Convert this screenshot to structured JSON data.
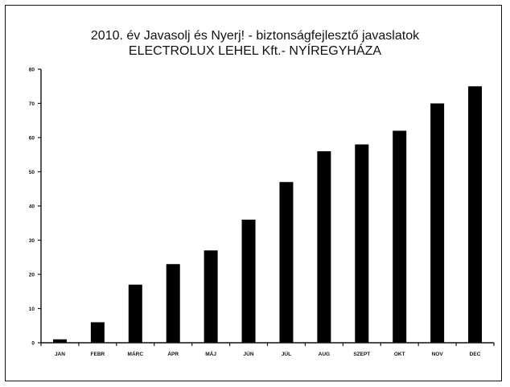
{
  "chart_data": {
    "type": "bar",
    "title": "2010. év Javasolj és Nyerj! - biztonságfejlesztő javaslatok",
    "subtitle": "ELECTROLUX LEHEL Kft.- NYÍREGYHÁZA",
    "categories": [
      "JAN",
      "FEBR",
      "MÁRC",
      "ÁPR",
      "MÁJ",
      "JÚN",
      "JÚL",
      "AUG",
      "SZEPT",
      "OKT",
      "NOV",
      "DEC"
    ],
    "values": [
      1,
      6,
      17,
      23,
      27,
      36,
      47,
      56,
      58,
      62,
      70,
      75
    ],
    "yticks": [
      "0",
      "10",
      "20",
      "30",
      "40",
      "50",
      "60",
      "70",
      "80"
    ],
    "ylim": [
      0,
      80
    ],
    "xlabel": "",
    "ylabel": "",
    "grid": false,
    "legend": "none",
    "colors": {
      "bar": "#000000",
      "axis": "#111111",
      "frame": "#111111"
    }
  }
}
